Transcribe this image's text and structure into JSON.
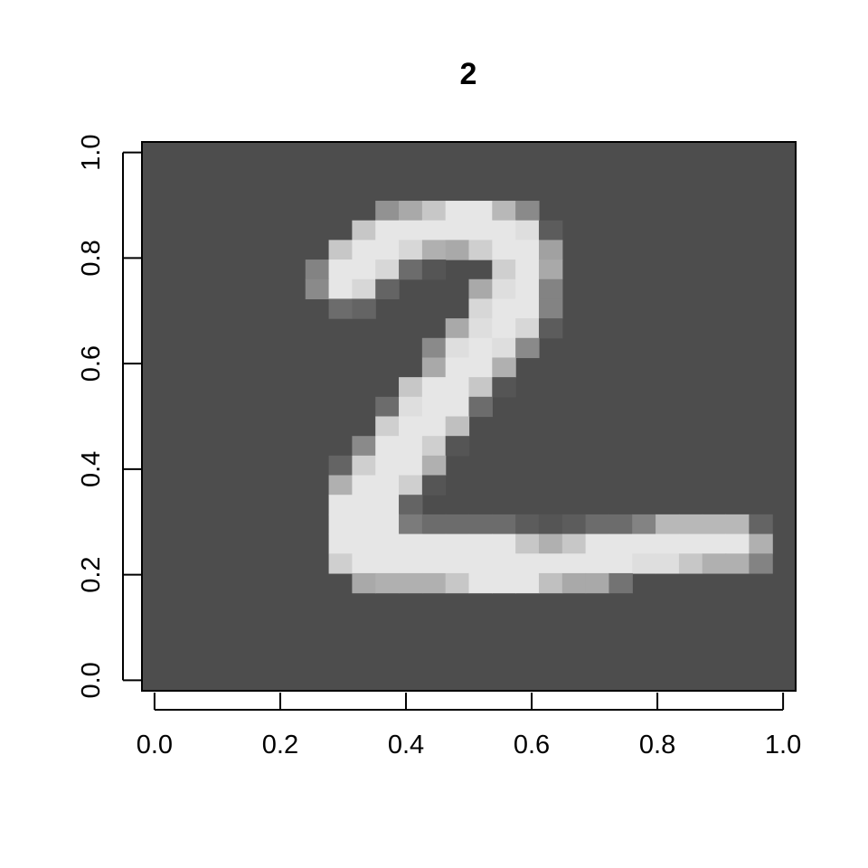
{
  "chart_data": {
    "type": "heatmap",
    "title": "2",
    "xlabel": "",
    "ylabel": "",
    "xlim": [
      -0.02,
      1.02
    ],
    "ylim": [
      -0.02,
      1.02
    ],
    "x_ticks": [
      {
        "value": 0.0,
        "label": "0.0"
      },
      {
        "value": 0.2,
        "label": "0.2"
      },
      {
        "value": 0.4,
        "label": "0.4"
      },
      {
        "value": 0.6,
        "label": "0.6"
      },
      {
        "value": 0.8,
        "label": "0.8"
      },
      {
        "value": 1.0,
        "label": "1.0"
      }
    ],
    "y_ticks": [
      {
        "value": 0.0,
        "label": "0.0"
      },
      {
        "value": 0.2,
        "label": "0.2"
      },
      {
        "value": 0.4,
        "label": "0.4"
      },
      {
        "value": 0.6,
        "label": "0.6"
      },
      {
        "value": 0.8,
        "label": "0.8"
      },
      {
        "value": 1.0,
        "label": "1.0"
      }
    ],
    "color_scale": {
      "low": "#4D4D4D",
      "high": "#E6E6E6"
    },
    "grid_size": [
      28,
      28
    ],
    "pixels": [
      {
        "row": 3,
        "col": 10,
        "v": 0.45
      },
      {
        "row": 3,
        "col": 11,
        "v": 0.6
      },
      {
        "row": 3,
        "col": 12,
        "v": 0.8
      },
      {
        "row": 3,
        "col": 13,
        "v": 1.0
      },
      {
        "row": 3,
        "col": 14,
        "v": 1.0
      },
      {
        "row": 3,
        "col": 15,
        "v": 0.7
      },
      {
        "row": 3,
        "col": 16,
        "v": 0.4
      },
      {
        "row": 4,
        "col": 9,
        "v": 0.8
      },
      {
        "row": 4,
        "col": 10,
        "v": 1.0
      },
      {
        "row": 4,
        "col": 11,
        "v": 1.0
      },
      {
        "row": 4,
        "col": 12,
        "v": 1.0
      },
      {
        "row": 4,
        "col": 13,
        "v": 1.0
      },
      {
        "row": 4,
        "col": 14,
        "v": 1.0
      },
      {
        "row": 4,
        "col": 15,
        "v": 1.0
      },
      {
        "row": 4,
        "col": 16,
        "v": 0.95
      },
      {
        "row": 4,
        "col": 17,
        "v": 0.1
      },
      {
        "row": 5,
        "col": 8,
        "v": 0.8
      },
      {
        "row": 5,
        "col": 9,
        "v": 1.0
      },
      {
        "row": 5,
        "col": 10,
        "v": 1.0
      },
      {
        "row": 5,
        "col": 11,
        "v": 0.9
      },
      {
        "row": 5,
        "col": 12,
        "v": 0.65
      },
      {
        "row": 5,
        "col": 13,
        "v": 0.6
      },
      {
        "row": 5,
        "col": 14,
        "v": 0.85
      },
      {
        "row": 5,
        "col": 15,
        "v": 1.0
      },
      {
        "row": 5,
        "col": 16,
        "v": 1.0
      },
      {
        "row": 5,
        "col": 17,
        "v": 0.55
      },
      {
        "row": 6,
        "col": 7,
        "v": 0.35
      },
      {
        "row": 6,
        "col": 8,
        "v": 1.0
      },
      {
        "row": 6,
        "col": 9,
        "v": 1.0
      },
      {
        "row": 6,
        "col": 10,
        "v": 0.9
      },
      {
        "row": 6,
        "col": 11,
        "v": 0.2
      },
      {
        "row": 6,
        "col": 12,
        "v": 0.05
      },
      {
        "row": 6,
        "col": 15,
        "v": 0.85
      },
      {
        "row": 6,
        "col": 16,
        "v": 1.0
      },
      {
        "row": 6,
        "col": 17,
        "v": 0.6
      },
      {
        "row": 7,
        "col": 7,
        "v": 0.4
      },
      {
        "row": 7,
        "col": 8,
        "v": 1.0
      },
      {
        "row": 7,
        "col": 9,
        "v": 0.9
      },
      {
        "row": 7,
        "col": 10,
        "v": 0.15
      },
      {
        "row": 7,
        "col": 14,
        "v": 0.6
      },
      {
        "row": 7,
        "col": 15,
        "v": 0.95
      },
      {
        "row": 7,
        "col": 16,
        "v": 1.0
      },
      {
        "row": 7,
        "col": 17,
        "v": 0.35
      },
      {
        "row": 8,
        "col": 8,
        "v": 0.2
      },
      {
        "row": 8,
        "col": 9,
        "v": 0.15
      },
      {
        "row": 8,
        "col": 14,
        "v": 0.9
      },
      {
        "row": 8,
        "col": 15,
        "v": 1.0
      },
      {
        "row": 8,
        "col": 16,
        "v": 1.0
      },
      {
        "row": 8,
        "col": 17,
        "v": 0.35
      },
      {
        "row": 9,
        "col": 13,
        "v": 0.6
      },
      {
        "row": 9,
        "col": 14,
        "v": 0.95
      },
      {
        "row": 9,
        "col": 15,
        "v": 1.0
      },
      {
        "row": 9,
        "col": 16,
        "v": 0.9
      },
      {
        "row": 9,
        "col": 17,
        "v": 0.1
      },
      {
        "row": 10,
        "col": 12,
        "v": 0.4
      },
      {
        "row": 10,
        "col": 13,
        "v": 0.95
      },
      {
        "row": 10,
        "col": 14,
        "v": 1.0
      },
      {
        "row": 10,
        "col": 15,
        "v": 0.95
      },
      {
        "row": 10,
        "col": 16,
        "v": 0.4
      },
      {
        "row": 11,
        "col": 12,
        "v": 0.6
      },
      {
        "row": 11,
        "col": 13,
        "v": 1.0
      },
      {
        "row": 11,
        "col": 14,
        "v": 1.0
      },
      {
        "row": 11,
        "col": 15,
        "v": 0.65
      },
      {
        "row": 12,
        "col": 11,
        "v": 0.8
      },
      {
        "row": 12,
        "col": 12,
        "v": 1.0
      },
      {
        "row": 12,
        "col": 13,
        "v": 1.0
      },
      {
        "row": 12,
        "col": 14,
        "v": 0.8
      },
      {
        "row": 12,
        "col": 15,
        "v": 0.05
      },
      {
        "row": 13,
        "col": 10,
        "v": 0.2
      },
      {
        "row": 13,
        "col": 11,
        "v": 0.95
      },
      {
        "row": 13,
        "col": 12,
        "v": 1.0
      },
      {
        "row": 13,
        "col": 13,
        "v": 1.0
      },
      {
        "row": 13,
        "col": 14,
        "v": 0.2
      },
      {
        "row": 14,
        "col": 10,
        "v": 0.85
      },
      {
        "row": 14,
        "col": 11,
        "v": 1.0
      },
      {
        "row": 14,
        "col": 12,
        "v": 1.0
      },
      {
        "row": 14,
        "col": 13,
        "v": 0.75
      },
      {
        "row": 15,
        "col": 9,
        "v": 0.4
      },
      {
        "row": 15,
        "col": 10,
        "v": 1.0
      },
      {
        "row": 15,
        "col": 11,
        "v": 1.0
      },
      {
        "row": 15,
        "col": 12,
        "v": 0.85
      },
      {
        "row": 15,
        "col": 13,
        "v": 0.05
      },
      {
        "row": 16,
        "col": 8,
        "v": 0.15
      },
      {
        "row": 16,
        "col": 9,
        "v": 0.85
      },
      {
        "row": 16,
        "col": 10,
        "v": 1.0
      },
      {
        "row": 16,
        "col": 11,
        "v": 1.0
      },
      {
        "row": 16,
        "col": 12,
        "v": 0.65
      },
      {
        "row": 17,
        "col": 8,
        "v": 0.65
      },
      {
        "row": 17,
        "col": 9,
        "v": 1.0
      },
      {
        "row": 17,
        "col": 10,
        "v": 1.0
      },
      {
        "row": 17,
        "col": 11,
        "v": 0.85
      },
      {
        "row": 17,
        "col": 12,
        "v": 0.05
      },
      {
        "row": 18,
        "col": 8,
        "v": 1.0
      },
      {
        "row": 18,
        "col": 9,
        "v": 1.0
      },
      {
        "row": 18,
        "col": 10,
        "v": 1.0
      },
      {
        "row": 18,
        "col": 11,
        "v": 0.15
      },
      {
        "row": 19,
        "col": 8,
        "v": 1.0
      },
      {
        "row": 19,
        "col": 9,
        "v": 1.0
      },
      {
        "row": 19,
        "col": 10,
        "v": 1.0
      },
      {
        "row": 19,
        "col": 11,
        "v": 0.3
      },
      {
        "row": 19,
        "col": 12,
        "v": 0.2
      },
      {
        "row": 19,
        "col": 13,
        "v": 0.2
      },
      {
        "row": 19,
        "col": 14,
        "v": 0.2
      },
      {
        "row": 19,
        "col": 15,
        "v": 0.2
      },
      {
        "row": 19,
        "col": 16,
        "v": 0.1
      },
      {
        "row": 19,
        "col": 17,
        "v": 0.05
      },
      {
        "row": 19,
        "col": 18,
        "v": 0.1
      },
      {
        "row": 19,
        "col": 19,
        "v": 0.2
      },
      {
        "row": 19,
        "col": 20,
        "v": 0.2
      },
      {
        "row": 19,
        "col": 21,
        "v": 0.35
      },
      {
        "row": 19,
        "col": 22,
        "v": 0.7
      },
      {
        "row": 19,
        "col": 23,
        "v": 0.7
      },
      {
        "row": 19,
        "col": 24,
        "v": 0.7
      },
      {
        "row": 19,
        "col": 25,
        "v": 0.7
      },
      {
        "row": 19,
        "col": 26,
        "v": 0.15
      },
      {
        "row": 20,
        "col": 8,
        "v": 1.0
      },
      {
        "row": 20,
        "col": 9,
        "v": 1.0
      },
      {
        "row": 20,
        "col": 10,
        "v": 1.0
      },
      {
        "row": 20,
        "col": 11,
        "v": 1.0
      },
      {
        "row": 20,
        "col": 12,
        "v": 1.0
      },
      {
        "row": 20,
        "col": 13,
        "v": 1.0
      },
      {
        "row": 20,
        "col": 14,
        "v": 1.0
      },
      {
        "row": 20,
        "col": 15,
        "v": 1.0
      },
      {
        "row": 20,
        "col": 16,
        "v": 0.8
      },
      {
        "row": 20,
        "col": 17,
        "v": 0.65
      },
      {
        "row": 20,
        "col": 18,
        "v": 0.8
      },
      {
        "row": 20,
        "col": 19,
        "v": 1.0
      },
      {
        "row": 20,
        "col": 20,
        "v": 1.0
      },
      {
        "row": 20,
        "col": 21,
        "v": 1.0
      },
      {
        "row": 20,
        "col": 22,
        "v": 1.0
      },
      {
        "row": 20,
        "col": 23,
        "v": 1.0
      },
      {
        "row": 20,
        "col": 24,
        "v": 1.0
      },
      {
        "row": 20,
        "col": 25,
        "v": 1.0
      },
      {
        "row": 20,
        "col": 26,
        "v": 0.65
      },
      {
        "row": 21,
        "col": 8,
        "v": 0.85
      },
      {
        "row": 21,
        "col": 9,
        "v": 1.0
      },
      {
        "row": 21,
        "col": 10,
        "v": 1.0
      },
      {
        "row": 21,
        "col": 11,
        "v": 1.0
      },
      {
        "row": 21,
        "col": 12,
        "v": 1.0
      },
      {
        "row": 21,
        "col": 13,
        "v": 1.0
      },
      {
        "row": 21,
        "col": 14,
        "v": 1.0
      },
      {
        "row": 21,
        "col": 15,
        "v": 1.0
      },
      {
        "row": 21,
        "col": 16,
        "v": 1.0
      },
      {
        "row": 21,
        "col": 17,
        "v": 1.0
      },
      {
        "row": 21,
        "col": 18,
        "v": 1.0
      },
      {
        "row": 21,
        "col": 19,
        "v": 1.0
      },
      {
        "row": 21,
        "col": 20,
        "v": 1.0
      },
      {
        "row": 21,
        "col": 21,
        "v": 0.95
      },
      {
        "row": 21,
        "col": 22,
        "v": 0.95
      },
      {
        "row": 21,
        "col": 23,
        "v": 0.8
      },
      {
        "row": 21,
        "col": 24,
        "v": 0.65
      },
      {
        "row": 21,
        "col": 25,
        "v": 0.65
      },
      {
        "row": 21,
        "col": 26,
        "v": 0.35
      },
      {
        "row": 22,
        "col": 9,
        "v": 0.6
      },
      {
        "row": 22,
        "col": 10,
        "v": 0.65
      },
      {
        "row": 22,
        "col": 11,
        "v": 0.65
      },
      {
        "row": 22,
        "col": 12,
        "v": 0.65
      },
      {
        "row": 22,
        "col": 13,
        "v": 0.8
      },
      {
        "row": 22,
        "col": 14,
        "v": 1.0
      },
      {
        "row": 22,
        "col": 15,
        "v": 1.0
      },
      {
        "row": 22,
        "col": 16,
        "v": 1.0
      },
      {
        "row": 22,
        "col": 17,
        "v": 0.75
      },
      {
        "row": 22,
        "col": 18,
        "v": 0.6
      },
      {
        "row": 22,
        "col": 19,
        "v": 0.6
      },
      {
        "row": 22,
        "col": 20,
        "v": 0.25
      }
    ]
  }
}
